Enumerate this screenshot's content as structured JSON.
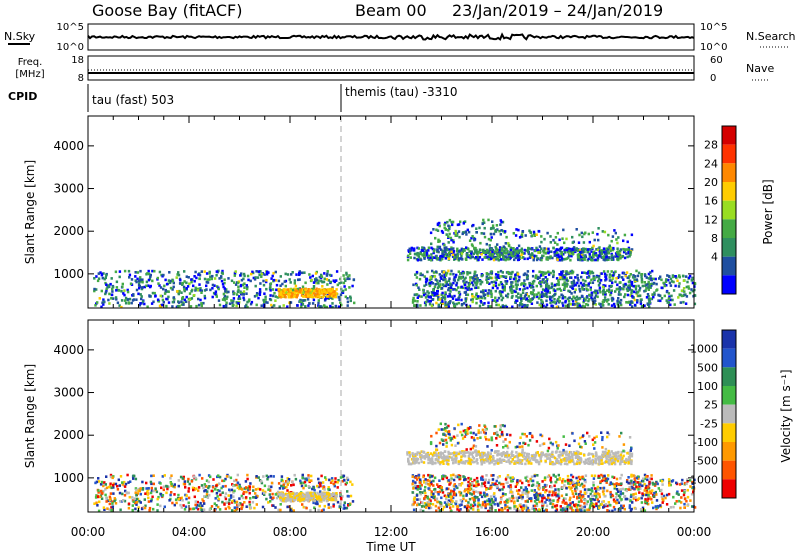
{
  "header": {
    "station": "Goose Bay (fitACF)",
    "beam": "Beam 00",
    "date_range": "23/Jan/2019 – 24/Jan/2019"
  },
  "nsky_panel": {
    "left_label": "N.Sky",
    "left_ticks": [
      "10^5",
      "10^0"
    ],
    "right_ticks": [
      "10^5",
      "10^0"
    ],
    "right_label": "N.Search"
  },
  "freq_panel": {
    "left_label_line1": "Freq.",
    "left_label_line2": "[MHz]",
    "left_ticks": [
      "18",
      "8"
    ],
    "right_ticks": [
      "60",
      "0"
    ],
    "right_label": "Nave"
  },
  "cpid_panel": {
    "label": "CPID",
    "segments": [
      {
        "text": "tau (fast) 503",
        "start_hour": 0
      },
      {
        "text": "themis (tau) -3310",
        "start_hour": 10
      }
    ]
  },
  "x_axis": {
    "ticks": [
      "00:00",
      "04:00",
      "08:00",
      "12:00",
      "16:00",
      "20:00",
      "00:00"
    ],
    "label": "Time UT"
  },
  "chart_data": [
    {
      "type": "heatmap",
      "title": "",
      "ylabel": "Slant Range [km]",
      "yticks": [
        1000,
        2000,
        3000,
        4000
      ],
      "ylim": [
        200,
        4700
      ],
      "xlim_hours": [
        0,
        24
      ],
      "colorbar": {
        "label": "Power [dB]",
        "ticks": [
          "28",
          "24",
          "20",
          "16",
          "12",
          "8",
          "4"
        ],
        "colors": [
          "#d40000",
          "#ff3300",
          "#ff8800",
          "#ffcc00",
          "#99dd22",
          "#44aa44",
          "#2f8f5f",
          "#1f4fa0",
          "#0000ff"
        ]
      }
    },
    {
      "type": "heatmap",
      "title": "",
      "ylabel": "Slant Range [km]",
      "yticks": [
        1000,
        2000,
        3000,
        4000
      ],
      "ylim": [
        200,
        4700
      ],
      "xlim_hours": [
        0,
        24
      ],
      "colorbar": {
        "label": "Velocity [m s⁻¹]",
        "ticks": [
          "1000",
          "500",
          "100",
          "25",
          "-25",
          "-100",
          "-500",
          "-1000"
        ],
        "colors": [
          "#1a33aa",
          "#2255cc",
          "#2e8f55",
          "#44bb44",
          "#bbbbbb",
          "#ffcc00",
          "#ff9900",
          "#ff5500",
          "#ee0000"
        ]
      }
    }
  ]
}
